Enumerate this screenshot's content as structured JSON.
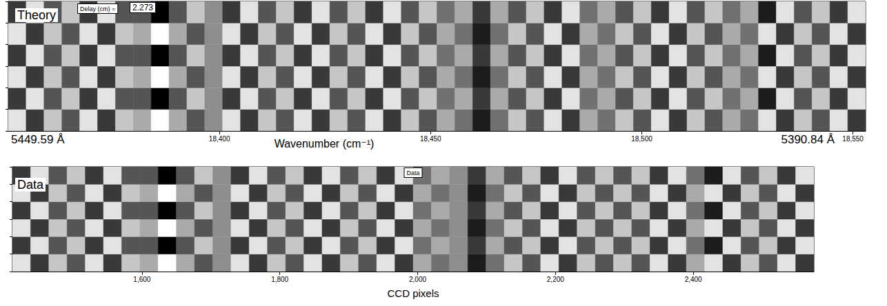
{
  "chart_data": [
    {
      "type": "heatmap",
      "title": "Theory",
      "x_label": "Wavenumber (cm⁻¹)",
      "xlim": [
        18350,
        18553
      ],
      "xticks": [
        18400,
        18450,
        18500,
        18550
      ],
      "tick_labels": "x",
      "annotations": [
        "5449.59 Å",
        "5390.84 Å"
      ],
      "delay_label": "Delay (cm) =",
      "delay": 2.273,
      "cells": [
        [
          8,
          2,
          7,
          3,
          8,
          2,
          7,
          6,
          9,
          6,
          3,
          5,
          8,
          2,
          7,
          3,
          8,
          2,
          7,
          3,
          8,
          2,
          7,
          3,
          6,
          4,
          1,
          4,
          7,
          3,
          8,
          2,
          6,
          4,
          7,
          3,
          8,
          2,
          7,
          3,
          6,
          4,
          8,
          2,
          7,
          3,
          8,
          2
        ],
        [
          2,
          8,
          3,
          7,
          2,
          8,
          3,
          3,
          0,
          3,
          7,
          5,
          2,
          8,
          3,
          7,
          2,
          8,
          3,
          7,
          2,
          8,
          3,
          7,
          4,
          6,
          2,
          6,
          3,
          7,
          2,
          8,
          4,
          6,
          3,
          7,
          2,
          8,
          3,
          7,
          4,
          6,
          1,
          8,
          3,
          7,
          2,
          8
        ],
        [
          8,
          2,
          7,
          3,
          8,
          2,
          7,
          6,
          9,
          6,
          3,
          5,
          8,
          2,
          7,
          3,
          8,
          2,
          7,
          3,
          8,
          2,
          7,
          3,
          6,
          4,
          1,
          4,
          7,
          3,
          8,
          2,
          6,
          4,
          7,
          3,
          8,
          2,
          7,
          3,
          6,
          4,
          8,
          2,
          7,
          3,
          8,
          2
        ],
        [
          2,
          8,
          3,
          7,
          2,
          8,
          3,
          3,
          0,
          3,
          7,
          5,
          2,
          8,
          3,
          7,
          2,
          8,
          3,
          7,
          2,
          8,
          3,
          7,
          4,
          6,
          2,
          6,
          3,
          7,
          2,
          8,
          4,
          6,
          3,
          7,
          2,
          8,
          3,
          7,
          4,
          6,
          1,
          8,
          3,
          7,
          2,
          8
        ],
        [
          8,
          2,
          7,
          3,
          8,
          2,
          7,
          6,
          9,
          6,
          3,
          5,
          8,
          2,
          7,
          3,
          8,
          2,
          7,
          3,
          8,
          2,
          7,
          3,
          6,
          4,
          1,
          4,
          7,
          3,
          8,
          2,
          6,
          4,
          7,
          3,
          8,
          2,
          7,
          3,
          6,
          4,
          8,
          2,
          7,
          3,
          8,
          2
        ],
        [
          2,
          8,
          3,
          7,
          2,
          8,
          3,
          3,
          0,
          3,
          7,
          5,
          2,
          8,
          3,
          7,
          2,
          8,
          3,
          7,
          2,
          8,
          3,
          7,
          4,
          6,
          2,
          6,
          3,
          7,
          2,
          8,
          4,
          6,
          3,
          7,
          2,
          8,
          3,
          7,
          4,
          6,
          1,
          8,
          3,
          7,
          2,
          8
        ]
      ]
    },
    {
      "type": "heatmap",
      "title": "Data",
      "box_label": "Data",
      "x_label": "CCD pixels",
      "xlim": [
        1412,
        2575
      ],
      "xticks": [
        1600,
        1800,
        2000,
        2200,
        2400
      ],
      "tick_labels": "x",
      "cells": [
        [
          8,
          2,
          7,
          3,
          8,
          2,
          7,
          6,
          9,
          6,
          3,
          5,
          8,
          2,
          7,
          3,
          8,
          2,
          7,
          3,
          8,
          2,
          6,
          4,
          5,
          1,
          4,
          7,
          3,
          8,
          2,
          7,
          3,
          7,
          3,
          8,
          2,
          6,
          8,
          2,
          7,
          3,
          8,
          2
        ],
        [
          2,
          8,
          3,
          7,
          2,
          8,
          3,
          3,
          0,
          3,
          7,
          5,
          2,
          8,
          3,
          7,
          2,
          8,
          3,
          7,
          2,
          8,
          4,
          6,
          5,
          2,
          6,
          3,
          7,
          2,
          8,
          3,
          7,
          3,
          7,
          2,
          8,
          4,
          1,
          8,
          3,
          7,
          2,
          8
        ],
        [
          8,
          2,
          7,
          3,
          8,
          2,
          7,
          6,
          9,
          6,
          3,
          5,
          8,
          2,
          7,
          3,
          8,
          2,
          7,
          3,
          8,
          2,
          6,
          4,
          5,
          1,
          4,
          7,
          3,
          8,
          2,
          7,
          3,
          7,
          3,
          8,
          2,
          6,
          8,
          2,
          7,
          3,
          8,
          2
        ],
        [
          2,
          8,
          3,
          7,
          2,
          8,
          3,
          3,
          0,
          3,
          7,
          5,
          2,
          8,
          3,
          7,
          2,
          8,
          3,
          7,
          2,
          8,
          4,
          6,
          5,
          2,
          6,
          3,
          7,
          2,
          8,
          3,
          7,
          3,
          7,
          2,
          8,
          4,
          1,
          8,
          3,
          7,
          2,
          8
        ],
        [
          8,
          2,
          7,
          3,
          8,
          2,
          7,
          6,
          9,
          6,
          3,
          5,
          8,
          2,
          7,
          3,
          8,
          2,
          7,
          3,
          8,
          2,
          6,
          4,
          5,
          1,
          4,
          7,
          3,
          8,
          2,
          7,
          3,
          7,
          3,
          8,
          2,
          6,
          8,
          2,
          7,
          3,
          8,
          2
        ],
        [
          2,
          8,
          3,
          7,
          2,
          8,
          3,
          3,
          0,
          3,
          7,
          5,
          2,
          8,
          3,
          7,
          2,
          8,
          3,
          7,
          2,
          8,
          4,
          6,
          5,
          2,
          6,
          3,
          7,
          2,
          8,
          3,
          7,
          3,
          7,
          2,
          8,
          4,
          1,
          8,
          3,
          7,
          2,
          8
        ]
      ]
    }
  ]
}
